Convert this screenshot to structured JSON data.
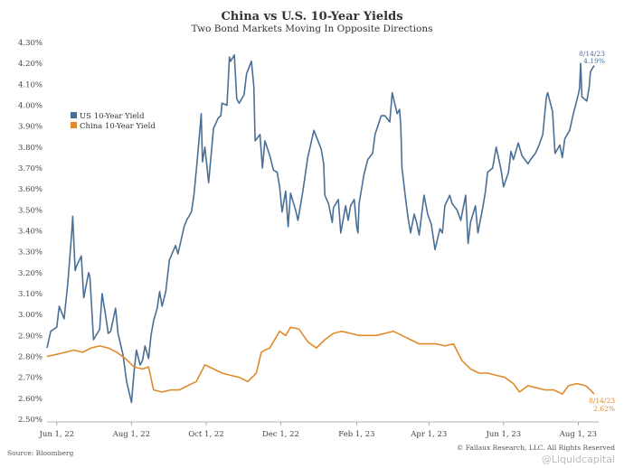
{
  "chart_data": {
    "type": "line",
    "title": "China vs U.S. 10-Year Yields",
    "subtitle": "Two Bond Markets Moving In Opposite Directions",
    "ylim": [
      2.5,
      4.3
    ],
    "yticks": [
      "4.30%",
      "4.20%",
      "4.10%",
      "4.00%",
      "3.90%",
      "3.80%",
      "3.70%",
      "3.60%",
      "3.50%",
      "3.40%",
      "3.30%",
      "3.20%",
      "3.10%",
      "3.00%",
      "2.90%",
      "2.80%",
      "2.70%",
      "2.60%",
      "2.50%"
    ],
    "xticks": [
      "Jun 1, 22",
      "Aug 1, 22",
      "Oct 1, 22",
      "Dec 1, 22",
      "Feb 1, 23",
      "Apr 1, 23",
      "Jun 1, 23",
      "Aug 1, 23"
    ],
    "xrange": [
      "2022-05-24",
      "2023-08-14"
    ],
    "grid": false,
    "legend_position": "top-left",
    "series": [
      {
        "name": "US 10-Year Yield",
        "color": "#4a6f96",
        "points": [
          [
            "2022-05-24",
            2.84
          ],
          [
            "2022-05-27",
            2.92
          ],
          [
            "2022-06-01",
            2.94
          ],
          [
            "2022-06-03",
            3.04
          ],
          [
            "2022-06-07",
            2.98
          ],
          [
            "2022-06-10",
            3.15
          ],
          [
            "2022-06-13",
            3.38
          ],
          [
            "2022-06-14",
            3.47
          ],
          [
            "2022-06-16",
            3.21
          ],
          [
            "2022-06-17",
            3.23
          ],
          [
            "2022-06-21",
            3.28
          ],
          [
            "2022-06-23",
            3.08
          ],
          [
            "2022-06-27",
            3.2
          ],
          [
            "2022-06-28",
            3.18
          ],
          [
            "2022-06-30",
            2.98
          ],
          [
            "2022-07-01",
            2.88
          ],
          [
            "2022-07-06",
            2.93
          ],
          [
            "2022-07-08",
            3.1
          ],
          [
            "2022-07-11",
            2.99
          ],
          [
            "2022-07-13",
            2.91
          ],
          [
            "2022-07-15",
            2.92
          ],
          [
            "2022-07-19",
            3.03
          ],
          [
            "2022-07-21",
            2.91
          ],
          [
            "2022-07-25",
            2.81
          ],
          [
            "2022-07-28",
            2.68
          ],
          [
            "2022-08-01",
            2.58
          ],
          [
            "2022-08-03",
            2.72
          ],
          [
            "2022-08-05",
            2.83
          ],
          [
            "2022-08-08",
            2.76
          ],
          [
            "2022-08-10",
            2.78
          ],
          [
            "2022-08-12",
            2.85
          ],
          [
            "2022-08-15",
            2.79
          ],
          [
            "2022-08-17",
            2.9
          ],
          [
            "2022-08-19",
            2.97
          ],
          [
            "2022-08-22",
            3.03
          ],
          [
            "2022-08-24",
            3.11
          ],
          [
            "2022-08-26",
            3.04
          ],
          [
            "2022-08-29",
            3.11
          ],
          [
            "2022-09-01",
            3.26
          ],
          [
            "2022-09-06",
            3.33
          ],
          [
            "2022-09-08",
            3.29
          ],
          [
            "2022-09-13",
            3.42
          ],
          [
            "2022-09-15",
            3.45
          ],
          [
            "2022-09-19",
            3.49
          ],
          [
            "2022-09-21",
            3.57
          ],
          [
            "2022-09-23",
            3.69
          ],
          [
            "2022-09-26",
            3.89
          ],
          [
            "2022-09-27",
            3.96
          ],
          [
            "2022-09-28",
            3.73
          ],
          [
            "2022-09-30",
            3.8
          ],
          [
            "2022-10-03",
            3.63
          ],
          [
            "2022-10-05",
            3.76
          ],
          [
            "2022-10-07",
            3.89
          ],
          [
            "2022-10-11",
            3.94
          ],
          [
            "2022-10-13",
            3.95
          ],
          [
            "2022-10-14",
            4.01
          ],
          [
            "2022-10-18",
            4.0
          ],
          [
            "2022-10-20",
            4.23
          ],
          [
            "2022-10-21",
            4.21
          ],
          [
            "2022-10-24",
            4.24
          ],
          [
            "2022-10-26",
            4.03
          ],
          [
            "2022-10-28",
            4.01
          ],
          [
            "2022-11-01",
            4.05
          ],
          [
            "2022-11-03",
            4.15
          ],
          [
            "2022-11-07",
            4.21
          ],
          [
            "2022-11-09",
            4.09
          ],
          [
            "2022-11-10",
            3.83
          ],
          [
            "2022-11-14",
            3.86
          ],
          [
            "2022-11-16",
            3.7
          ],
          [
            "2022-11-18",
            3.83
          ],
          [
            "2022-11-22",
            3.76
          ],
          [
            "2022-11-25",
            3.69
          ],
          [
            "2022-11-28",
            3.68
          ],
          [
            "2022-11-30",
            3.61
          ],
          [
            "2022-12-02",
            3.49
          ],
          [
            "2022-12-05",
            3.59
          ],
          [
            "2022-12-07",
            3.42
          ],
          [
            "2022-12-09",
            3.58
          ],
          [
            "2022-12-13",
            3.5
          ],
          [
            "2022-12-15",
            3.45
          ],
          [
            "2022-12-19",
            3.59
          ],
          [
            "2022-12-21",
            3.67
          ],
          [
            "2022-12-23",
            3.75
          ],
          [
            "2022-12-28",
            3.88
          ],
          [
            "2023-01-03",
            3.79
          ],
          [
            "2023-01-05",
            3.72
          ],
          [
            "2023-01-06",
            3.57
          ],
          [
            "2023-01-09",
            3.53
          ],
          [
            "2023-01-12",
            3.44
          ],
          [
            "2023-01-13",
            3.51
          ],
          [
            "2023-01-17",
            3.55
          ],
          [
            "2023-01-19",
            3.39
          ],
          [
            "2023-01-23",
            3.52
          ],
          [
            "2023-01-25",
            3.45
          ],
          [
            "2023-01-27",
            3.52
          ],
          [
            "2023-01-30",
            3.55
          ],
          [
            "2023-02-01",
            3.42
          ],
          [
            "2023-02-02",
            3.39
          ],
          [
            "2023-02-03",
            3.53
          ],
          [
            "2023-02-07",
            3.67
          ],
          [
            "2023-02-10",
            3.74
          ],
          [
            "2023-02-14",
            3.77
          ],
          [
            "2023-02-16",
            3.86
          ],
          [
            "2023-02-21",
            3.95
          ],
          [
            "2023-02-24",
            3.95
          ],
          [
            "2023-02-28",
            3.92
          ],
          [
            "2023-03-02",
            4.06
          ],
          [
            "2023-03-06",
            3.96
          ],
          [
            "2023-03-08",
            3.98
          ],
          [
            "2023-03-09",
            3.9
          ],
          [
            "2023-03-10",
            3.7
          ],
          [
            "2023-03-13",
            3.55
          ],
          [
            "2023-03-15",
            3.46
          ],
          [
            "2023-03-17",
            3.39
          ],
          [
            "2023-03-20",
            3.48
          ],
          [
            "2023-03-22",
            3.44
          ],
          [
            "2023-03-24",
            3.38
          ],
          [
            "2023-03-28",
            3.57
          ],
          [
            "2023-03-31",
            3.48
          ],
          [
            "2023-04-03",
            3.43
          ],
          [
            "2023-04-06",
            3.31
          ],
          [
            "2023-04-10",
            3.41
          ],
          [
            "2023-04-12",
            3.39
          ],
          [
            "2023-04-14",
            3.52
          ],
          [
            "2023-04-18",
            3.57
          ],
          [
            "2023-04-20",
            3.53
          ],
          [
            "2023-04-24",
            3.5
          ],
          [
            "2023-04-27",
            3.45
          ],
          [
            "2023-05-01",
            3.57
          ],
          [
            "2023-05-03",
            3.34
          ],
          [
            "2023-05-05",
            3.44
          ],
          [
            "2023-05-09",
            3.52
          ],
          [
            "2023-05-11",
            3.39
          ],
          [
            "2023-05-15",
            3.51
          ],
          [
            "2023-05-17",
            3.58
          ],
          [
            "2023-05-19",
            3.68
          ],
          [
            "2023-05-23",
            3.7
          ],
          [
            "2023-05-26",
            3.8
          ],
          [
            "2023-05-30",
            3.69
          ],
          [
            "2023-06-01",
            3.61
          ],
          [
            "2023-06-05",
            3.68
          ],
          [
            "2023-06-07",
            3.78
          ],
          [
            "2023-06-09",
            3.74
          ],
          [
            "2023-06-13",
            3.82
          ],
          [
            "2023-06-16",
            3.76
          ],
          [
            "2023-06-21",
            3.72
          ],
          [
            "2023-06-23",
            3.74
          ],
          [
            "2023-06-27",
            3.77
          ],
          [
            "2023-06-30",
            3.81
          ],
          [
            "2023-07-03",
            3.86
          ],
          [
            "2023-07-06",
            4.04
          ],
          [
            "2023-07-07",
            4.06
          ],
          [
            "2023-07-11",
            3.97
          ],
          [
            "2023-07-13",
            3.77
          ],
          [
            "2023-07-17",
            3.81
          ],
          [
            "2023-07-19",
            3.75
          ],
          [
            "2023-07-21",
            3.84
          ],
          [
            "2023-07-25",
            3.88
          ],
          [
            "2023-07-28",
            3.96
          ],
          [
            "2023-08-01",
            4.05
          ],
          [
            "2023-08-02",
            4.08
          ],
          [
            "2023-08-03",
            4.2
          ],
          [
            "2023-08-04",
            4.04
          ],
          [
            "2023-08-08",
            4.02
          ],
          [
            "2023-08-10",
            4.09
          ],
          [
            "2023-08-11",
            4.16
          ],
          [
            "2023-08-14",
            4.19
          ]
        ]
      },
      {
        "name": "China 10-Year Yield",
        "color": "#e08a2c",
        "points": [
          [
            "2022-05-24",
            2.8
          ],
          [
            "2022-06-01",
            2.81
          ],
          [
            "2022-06-08",
            2.82
          ],
          [
            "2022-06-15",
            2.83
          ],
          [
            "2022-06-22",
            2.82
          ],
          [
            "2022-06-29",
            2.84
          ],
          [
            "2022-07-06",
            2.85
          ],
          [
            "2022-07-13",
            2.84
          ],
          [
            "2022-07-20",
            2.82
          ],
          [
            "2022-07-27",
            2.79
          ],
          [
            "2022-08-03",
            2.75
          ],
          [
            "2022-08-10",
            2.74
          ],
          [
            "2022-08-15",
            2.75
          ],
          [
            "2022-08-19",
            2.64
          ],
          [
            "2022-08-26",
            2.63
          ],
          [
            "2022-09-02",
            2.64
          ],
          [
            "2022-09-09",
            2.64
          ],
          [
            "2022-09-16",
            2.66
          ],
          [
            "2022-09-23",
            2.68
          ],
          [
            "2022-09-30",
            2.76
          ],
          [
            "2022-10-07",
            2.74
          ],
          [
            "2022-10-14",
            2.72
          ],
          [
            "2022-10-21",
            2.71
          ],
          [
            "2022-10-28",
            2.7
          ],
          [
            "2022-11-04",
            2.68
          ],
          [
            "2022-11-11",
            2.72
          ],
          [
            "2022-11-15",
            2.82
          ],
          [
            "2022-11-18",
            2.83
          ],
          [
            "2022-11-22",
            2.84
          ],
          [
            "2022-11-25",
            2.87
          ],
          [
            "2022-11-30",
            2.92
          ],
          [
            "2022-12-05",
            2.9
          ],
          [
            "2022-12-09",
            2.94
          ],
          [
            "2022-12-16",
            2.93
          ],
          [
            "2022-12-23",
            2.87
          ],
          [
            "2022-12-30",
            2.84
          ],
          [
            "2023-01-06",
            2.88
          ],
          [
            "2023-01-13",
            2.91
          ],
          [
            "2023-01-20",
            2.92
          ],
          [
            "2023-01-27",
            2.91
          ],
          [
            "2023-02-03",
            2.9
          ],
          [
            "2023-02-10",
            2.9
          ],
          [
            "2023-02-17",
            2.9
          ],
          [
            "2023-02-24",
            2.91
          ],
          [
            "2023-03-03",
            2.92
          ],
          [
            "2023-03-10",
            2.9
          ],
          [
            "2023-03-17",
            2.88
          ],
          [
            "2023-03-24",
            2.86
          ],
          [
            "2023-03-31",
            2.86
          ],
          [
            "2023-04-07",
            2.86
          ],
          [
            "2023-04-14",
            2.85
          ],
          [
            "2023-04-21",
            2.86
          ],
          [
            "2023-04-28",
            2.78
          ],
          [
            "2023-05-05",
            2.74
          ],
          [
            "2023-05-12",
            2.72
          ],
          [
            "2023-05-19",
            2.72
          ],
          [
            "2023-05-26",
            2.71
          ],
          [
            "2023-06-02",
            2.7
          ],
          [
            "2023-06-09",
            2.67
          ],
          [
            "2023-06-14",
            2.63
          ],
          [
            "2023-06-21",
            2.66
          ],
          [
            "2023-06-28",
            2.65
          ],
          [
            "2023-07-05",
            2.64
          ],
          [
            "2023-07-12",
            2.64
          ],
          [
            "2023-07-19",
            2.62
          ],
          [
            "2023-07-24",
            2.66
          ],
          [
            "2023-07-31",
            2.67
          ],
          [
            "2023-08-07",
            2.66
          ],
          [
            "2023-08-11",
            2.64
          ],
          [
            "2023-08-14",
            2.62
          ]
        ]
      }
    ],
    "end_labels": [
      {
        "date": "8/14/23",
        "value": "4.19%",
        "series": 0
      },
      {
        "date": "8/14/23",
        "value": "2.62%",
        "series": 1
      }
    ]
  },
  "footer": {
    "source": "Source: Bloomberg",
    "copyright": "© Fallaux Research, LLC. All Rights Reserved"
  },
  "watermark": "@Liquidcapital"
}
